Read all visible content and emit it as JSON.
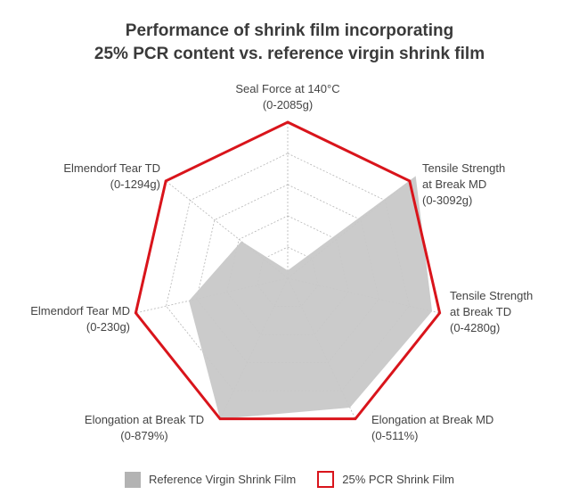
{
  "title_lines": [
    "Performance of shrink film incorporating",
    "25% PCR content vs. reference virgin shrink film"
  ],
  "colors": {
    "reference_fill": "#c8c8c8",
    "pcr_stroke": "#d9141b",
    "grid": "#b5b5b5"
  },
  "legend": {
    "reference": "Reference Virgin Shrink Film",
    "pcr": "25% PCR Shrink Film"
  },
  "chart_data": {
    "type": "radar",
    "title": "Performance of shrink film incorporating 25% PCR content vs. reference virgin shrink film",
    "axes": [
      {
        "line1": "Seal Force at 140°C",
        "line2": "(0-2085g)"
      },
      {
        "line1": "Tensile Strength",
        "line2": "at Break MD",
        "line3": "(0-3092g)"
      },
      {
        "line1": "Tensile Strength",
        "line2": "at Break TD",
        "line3": "(0-4280g)"
      },
      {
        "line1": "Elongation at Break MD",
        "line2": "(0-511%)"
      },
      {
        "line1": "Elongation at Break TD",
        "line2": "(0-879%)"
      },
      {
        "line1": "Elmendorf Tear MD",
        "line2": "(0-230g)"
      },
      {
        "line1": "Elmendorf Tear TD",
        "line2": "(0-1294g)"
      }
    ],
    "range": [
      0,
      1
    ],
    "grid_levels": 5,
    "series": [
      {
        "name": "Reference Virgin Shrink Film",
        "style": "filled",
        "values": [
          0.05,
          1.05,
          0.95,
          0.92,
          1.0,
          0.65,
          0.38
        ]
      },
      {
        "name": "25% PCR Shrink Film",
        "style": "outline",
        "values": [
          1.0,
          1.0,
          1.0,
          1.0,
          1.0,
          1.0,
          1.0
        ]
      }
    ]
  }
}
